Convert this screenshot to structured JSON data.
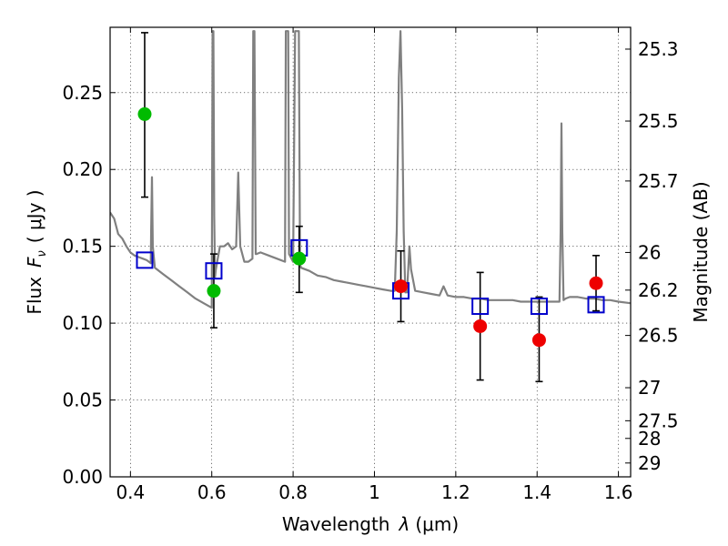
{
  "chart_data": {
    "type": "scatter",
    "xlabel": "Wavelength",
    "xlabel_symbol": "λ",
    "xlabel_unit": "(μm)",
    "ylabel": "Flux",
    "ylabel_symbol": "F",
    "ylabel_subscript": "ν",
    "ylabel_unit": "( μJy )",
    "y2label": "Magnitude (AB)",
    "xlim": [
      0.35,
      1.63
    ],
    "ylim": [
      0.0,
      0.2925
    ],
    "grid": true,
    "x_ticks": [
      0.4,
      0.6,
      0.8,
      1.0,
      1.2,
      1.4,
      1.6
    ],
    "x_tick_labels": [
      "0.4",
      "0.6",
      "0.8",
      "1",
      "1.2",
      "1.4",
      "1.6"
    ],
    "y_ticks": [
      0.0,
      0.05,
      0.1,
      0.15,
      0.2,
      0.25
    ],
    "y_tick_labels": [
      "0.00",
      "0.05",
      "0.10",
      "0.15",
      "0.20",
      "0.25"
    ],
    "y2_ticks": [
      {
        "label": "25.3",
        "flux": 0.2783
      },
      {
        "label": "25.5",
        "flux": 0.2315
      },
      {
        "label": "25.7",
        "flux": 0.1925
      },
      {
        "label": "26",
        "flux": 0.146
      },
      {
        "label": "26.2",
        "flux": 0.1215
      },
      {
        "label": "26.5",
        "flux": 0.092
      },
      {
        "label": "27",
        "flux": 0.058
      },
      {
        "label": "27.5",
        "flux": 0.0365
      },
      {
        "label": "28",
        "flux": 0.025
      },
      {
        "label": "29",
        "flux": 0.009
      }
    ],
    "series": [
      {
        "name": "model-spectrum",
        "kind": "line",
        "color": "#808080",
        "x": [
          0.35,
          0.36,
          0.37,
          0.38,
          0.39,
          0.4,
          0.41,
          0.42,
          0.43,
          0.44,
          0.45,
          0.451,
          0.453,
          0.455,
          0.46,
          0.48,
          0.5,
          0.52,
          0.54,
          0.56,
          0.58,
          0.6,
          0.602,
          0.604,
          0.606,
          0.608,
          0.61,
          0.62,
          0.63,
          0.64,
          0.65,
          0.66,
          0.665,
          0.67,
          0.68,
          0.69,
          0.7,
          0.702,
          0.705,
          0.708,
          0.71,
          0.72,
          0.74,
          0.76,
          0.78,
          0.782,
          0.785,
          0.788,
          0.79,
          0.8,
          0.805,
          0.808,
          0.811,
          0.814,
          0.817,
          0.82,
          0.84,
          0.86,
          0.88,
          0.9,
          0.92,
          0.94,
          0.96,
          0.98,
          1.0,
          1.02,
          1.04,
          1.05,
          1.055,
          1.06,
          1.064,
          1.068,
          1.072,
          1.076,
          1.08,
          1.083,
          1.086,
          1.09,
          1.1,
          1.12,
          1.14,
          1.16,
          1.17,
          1.18,
          1.2,
          1.22,
          1.24,
          1.26,
          1.28,
          1.3,
          1.32,
          1.34,
          1.36,
          1.38,
          1.4,
          1.42,
          1.44,
          1.455,
          1.458,
          1.46,
          1.462,
          1.465,
          1.47,
          1.48,
          1.5,
          1.52,
          1.54,
          1.56,
          1.58,
          1.6,
          1.63
        ],
        "y": [
          0.172,
          0.168,
          0.158,
          0.155,
          0.15,
          0.146,
          0.144,
          0.143,
          0.142,
          0.141,
          0.139,
          0.16,
          0.195,
          0.15,
          0.136,
          0.132,
          0.128,
          0.124,
          0.12,
          0.116,
          0.113,
          0.11,
          0.29,
          0.29,
          0.17,
          0.13,
          0.135,
          0.15,
          0.15,
          0.152,
          0.148,
          0.15,
          0.198,
          0.15,
          0.14,
          0.14,
          0.142,
          0.29,
          0.29,
          0.145,
          0.145,
          0.146,
          0.144,
          0.142,
          0.14,
          0.29,
          0.29,
          0.29,
          0.145,
          0.14,
          0.29,
          0.29,
          0.29,
          0.29,
          0.138,
          0.136,
          0.134,
          0.131,
          0.13,
          0.128,
          0.127,
          0.126,
          0.125,
          0.124,
          0.123,
          0.122,
          0.121,
          0.121,
          0.16,
          0.26,
          0.29,
          0.24,
          0.16,
          0.12,
          0.12,
          0.135,
          0.15,
          0.135,
          0.121,
          0.12,
          0.119,
          0.118,
          0.124,
          0.118,
          0.117,
          0.117,
          0.116,
          0.116,
          0.115,
          0.115,
          0.115,
          0.115,
          0.114,
          0.114,
          0.114,
          0.114,
          0.114,
          0.114,
          0.16,
          0.23,
          0.16,
          0.115,
          0.116,
          0.117,
          0.117,
          0.116,
          0.116,
          0.115,
          0.115,
          0.114,
          0.113
        ]
      },
      {
        "name": "model-photometry",
        "kind": "open-square",
        "color": "#0000cc",
        "x": [
          0.435,
          0.605,
          0.815,
          1.065,
          1.26,
          1.405,
          1.545
        ],
        "y": [
          0.141,
          0.134,
          0.149,
          0.121,
          0.111,
          0.111,
          0.112
        ]
      },
      {
        "name": "observed-green",
        "kind": "filled-circle",
        "color": "#00bb00",
        "x": [
          0.435,
          0.605,
          0.815
        ],
        "y": [
          0.236,
          0.121,
          0.142
        ],
        "yerr_low": [
          0.182,
          0.097,
          0.12
        ],
        "yerr_high": [
          0.289,
          0.145,
          0.163
        ]
      },
      {
        "name": "observed-red",
        "kind": "filled-circle",
        "color": "#ee0000",
        "x": [
          1.065,
          1.26,
          1.405,
          1.545
        ],
        "y": [
          0.124,
          0.098,
          0.089,
          0.126
        ],
        "yerr_low": [
          0.101,
          0.063,
          0.062,
          0.108
        ],
        "yerr_high": [
          0.147,
          0.133,
          0.117,
          0.144
        ]
      }
    ]
  }
}
